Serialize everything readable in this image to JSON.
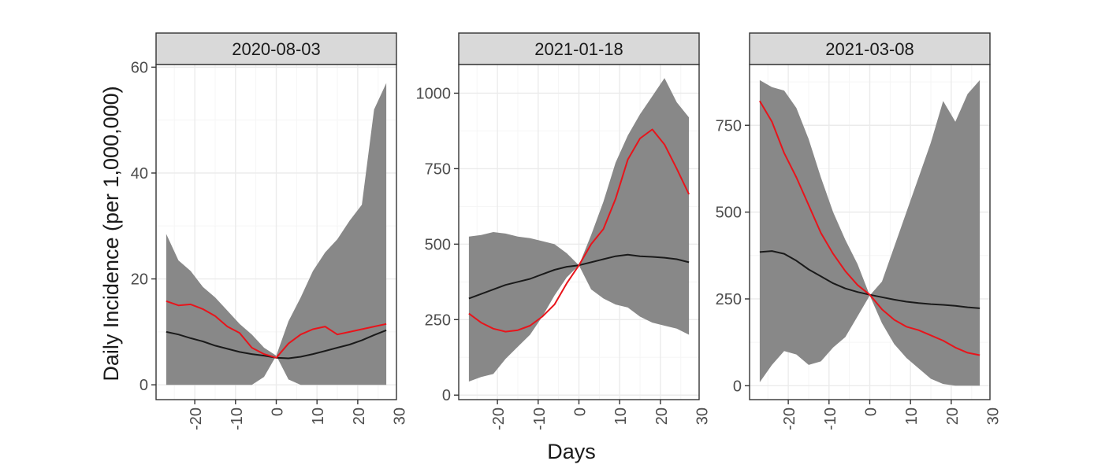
{
  "chart_data": {
    "type": "area",
    "ylabel": "Daily Incidence (per 1,000,000)",
    "xlabel": "Days",
    "grid": true,
    "legend": "none",
    "colors": {
      "ribbon": "#888888",
      "mean_line": "#1a1a1a",
      "observed_line": "#e8141b",
      "panel_background": "#ffffff",
      "grid_major": "#ebebeb",
      "grid_minor": "#f5f5f5",
      "strip_fill": "#d9d9d9",
      "strip_border": "#333333"
    },
    "panels": [
      {
        "title": "2020-08-03",
        "xlim": [
          -29.5,
          29.5
        ],
        "ylim": [
          -2.8,
          60.5
        ],
        "xticks": [
          -20,
          -10,
          0,
          10,
          20,
          30
        ],
        "yticks": [
          0,
          20,
          40,
          60
        ],
        "x": [
          -27,
          -24,
          -21,
          -18,
          -15,
          -12,
          -9,
          -6,
          -3,
          0,
          3,
          6,
          9,
          12,
          15,
          18,
          21,
          24,
          27
        ],
        "series": [
          {
            "role": "ribbon_upper",
            "values": [
              28.5,
              23.5,
              21.5,
              18.5,
              16.5,
              14,
              11.5,
              9.5,
              7,
              5.5,
              12,
              16.5,
              21.5,
              25,
              27.5,
              31,
              34,
              52,
              57
            ]
          },
          {
            "role": "ribbon_lower",
            "values": [
              0,
              0,
              0,
              0,
              0,
              0,
              0,
              0,
              1.5,
              5.5,
              1,
              0,
              0,
              0,
              0,
              0,
              0,
              0,
              0
            ]
          },
          {
            "role": "mean_line",
            "values": [
              10,
              9.5,
              8.8,
              8.2,
              7.4,
              6.8,
              6.2,
              5.8,
              5.5,
              5.1,
              5.0,
              5.3,
              5.8,
              6.4,
              7.0,
              7.6,
              8.4,
              9.4,
              10.3
            ]
          },
          {
            "role": "observed_line",
            "values": [
              15.8,
              15.0,
              15.2,
              14.3,
              13.0,
              11.0,
              9.8,
              7.0,
              5.8,
              5.1,
              7.8,
              9.5,
              10.5,
              11.0,
              9.5,
              10.0,
              10.5,
              11.0,
              11.5
            ]
          }
        ]
      },
      {
        "title": "2021-01-18",
        "xlim": [
          -29.5,
          29.5
        ],
        "ylim": [
          -15,
          1095
        ],
        "xticks": [
          -20,
          -10,
          0,
          10,
          20,
          30
        ],
        "yticks": [
          0,
          250,
          500,
          750,
          1000
        ],
        "x": [
          -27,
          -24,
          -21,
          -18,
          -15,
          -12,
          -9,
          -6,
          -3,
          0,
          3,
          6,
          9,
          12,
          15,
          18,
          21,
          24,
          27
        ],
        "series": [
          {
            "role": "ribbon_upper",
            "values": [
              525,
              530,
              540,
              535,
              525,
              520,
              510,
              500,
              470,
              430,
              530,
              640,
              770,
              860,
              930,
              990,
              1050,
              970,
              920
            ]
          },
          {
            "role": "ribbon_lower",
            "values": [
              45,
              60,
              70,
              120,
              160,
              200,
              260,
              330,
              390,
              430,
              350,
              320,
              300,
              290,
              260,
              240,
              230,
              220,
              200
            ]
          },
          {
            "role": "mean_line",
            "values": [
              320,
              335,
              350,
              365,
              375,
              385,
              400,
              415,
              425,
              430,
              440,
              450,
              460,
              465,
              460,
              458,
              455,
              450,
              440
            ]
          },
          {
            "role": "observed_line",
            "values": [
              270,
              240,
              220,
              210,
              215,
              230,
              260,
              300,
              370,
              430,
              500,
              550,
              650,
              780,
              850,
              880,
              830,
              750,
              665
            ]
          }
        ]
      },
      {
        "title": "2021-03-08",
        "xlim": [
          -29.5,
          29.5
        ],
        "ylim": [
          -40,
          925
        ],
        "xticks": [
          -20,
          -10,
          0,
          10,
          20,
          30
        ],
        "yticks": [
          0,
          250,
          500,
          750
        ],
        "x": [
          -27,
          -24,
          -21,
          -18,
          -15,
          -12,
          -9,
          -6,
          -3,
          0,
          3,
          6,
          9,
          12,
          15,
          18,
          21,
          24,
          27
        ],
        "series": [
          {
            "role": "ribbon_upper",
            "values": [
              880,
              860,
              850,
              800,
              710,
              600,
              500,
              420,
              350,
              260,
              300,
              400,
              500,
              600,
              700,
              820,
              760,
              840,
              880
            ]
          },
          {
            "role": "ribbon_lower",
            "values": [
              10,
              60,
              100,
              90,
              60,
              70,
              110,
              140,
              200,
              260,
              180,
              120,
              80,
              50,
              20,
              5,
              0,
              0,
              0
            ]
          },
          {
            "role": "mean_line",
            "values": [
              385,
              388,
              380,
              360,
              335,
              315,
              295,
              280,
              270,
              262,
              255,
              248,
              242,
              238,
              235,
              233,
              230,
              226,
              223
            ]
          },
          {
            "role": "observed_line",
            "values": [
              820,
              760,
              670,
              600,
              520,
              440,
              380,
              330,
              290,
              262,
              220,
              190,
              170,
              160,
              145,
              130,
              110,
              95,
              88
            ]
          }
        ]
      }
    ]
  }
}
